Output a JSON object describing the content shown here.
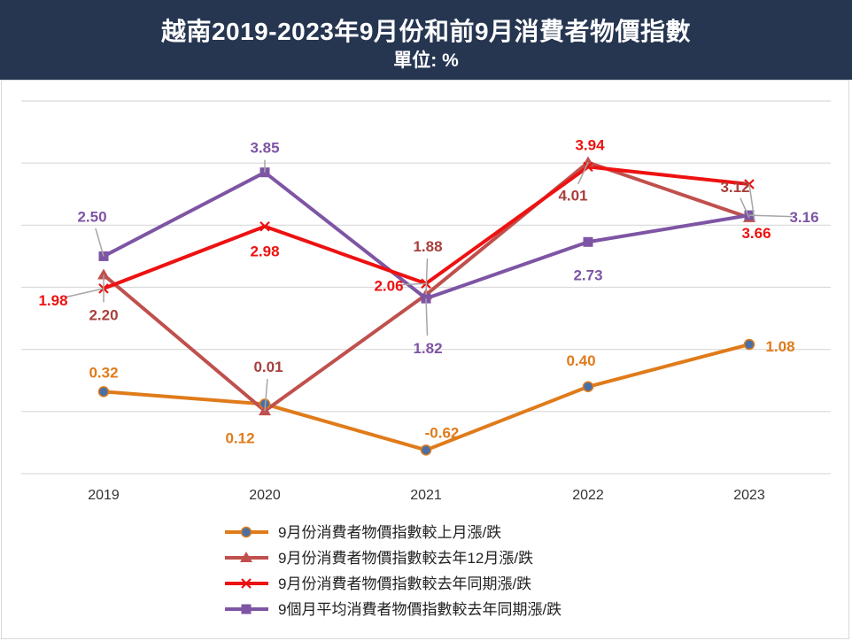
{
  "header": {
    "title": "越南2019-2023年9月份和前9月消費者物價指數",
    "subtitle": "單位: %"
  },
  "chart_data": {
    "type": "line",
    "title": "越南2019-2023年9月份和前9月消費者物價指數",
    "subtitle": "單位: %",
    "categories": [
      "2019",
      "2020",
      "2021",
      "2022",
      "2023"
    ],
    "ylim": [
      -1,
      5
    ],
    "grid": true,
    "legend_position": "bottom",
    "series": [
      {
        "name": "9月份消費者物價指數較上月漲/跌",
        "color": "#e07b1a",
        "marker": "circle",
        "values": [
          0.32,
          0.12,
          -0.62,
          0.4,
          1.08
        ]
      },
      {
        "name": "9月份消費者物價指數較去年12月漲/跌",
        "color": "#c0504d",
        "marker": "triangle",
        "values": [
          2.2,
          0.01,
          1.88,
          4.01,
          3.12
        ]
      },
      {
        "name": "9月份消費者物價指數較去年同期漲/跌",
        "color": "#ee1111",
        "marker": "x",
        "values": [
          1.98,
          2.98,
          2.06,
          3.94,
          3.66
        ]
      },
      {
        "name": "9個月平均消費者物價指數較去年同期漲/跌",
        "color": "#7e55a4",
        "marker": "square",
        "values": [
          2.5,
          3.85,
          1.82,
          2.73,
          3.16
        ]
      }
    ],
    "data_labels": [
      {
        "series": 0,
        "index": 0,
        "text": "0.32"
      },
      {
        "series": 0,
        "index": 1,
        "text": "0.12"
      },
      {
        "series": 0,
        "index": 2,
        "text": "-0.62"
      },
      {
        "series": 0,
        "index": 3,
        "text": "0.40"
      },
      {
        "series": 0,
        "index": 4,
        "text": "1.08"
      },
      {
        "series": 1,
        "index": 0,
        "text": "2.20"
      },
      {
        "series": 1,
        "index": 1,
        "text": "0.01"
      },
      {
        "series": 1,
        "index": 2,
        "text": "1.88"
      },
      {
        "series": 1,
        "index": 3,
        "text": "4.01"
      },
      {
        "series": 1,
        "index": 4,
        "text": "3.12"
      },
      {
        "series": 2,
        "index": 0,
        "text": "1.98"
      },
      {
        "series": 2,
        "index": 1,
        "text": "2.98"
      },
      {
        "series": 2,
        "index": 2,
        "text": "2.06"
      },
      {
        "series": 2,
        "index": 3,
        "text": "3.94"
      },
      {
        "series": 2,
        "index": 4,
        "text": "3.66"
      },
      {
        "series": 3,
        "index": 0,
        "text": "2.50"
      },
      {
        "series": 3,
        "index": 1,
        "text": "3.85"
      },
      {
        "series": 3,
        "index": 2,
        "text": "1.82"
      },
      {
        "series": 3,
        "index": 3,
        "text": "2.73"
      },
      {
        "series": 3,
        "index": 4,
        "text": "3.16"
      }
    ]
  }
}
